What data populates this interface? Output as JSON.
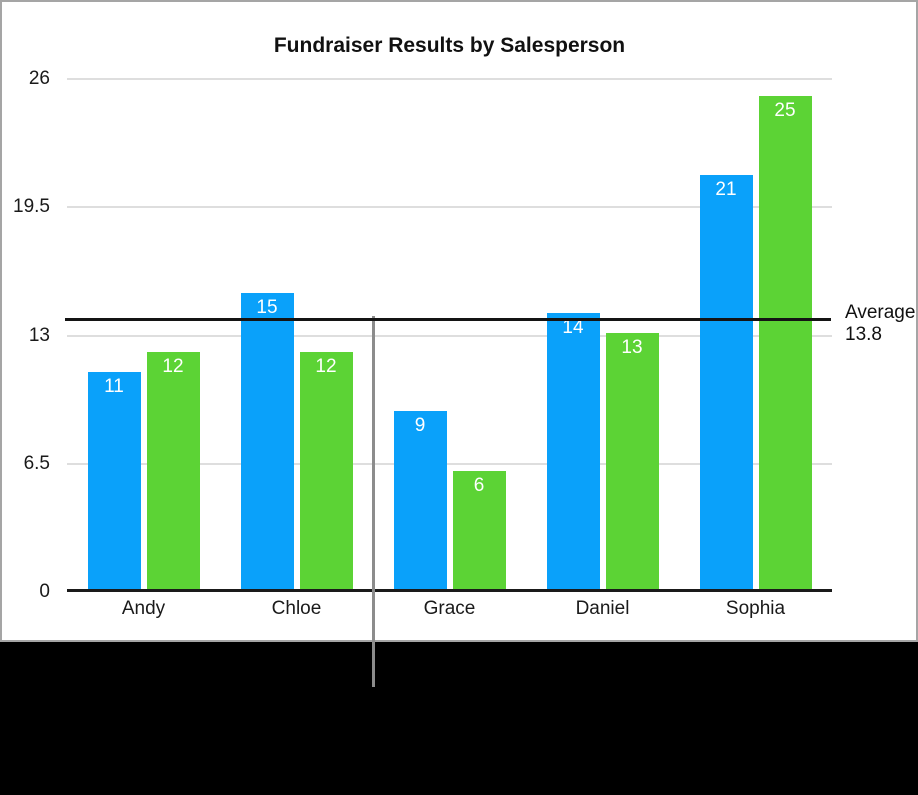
{
  "window": {
    "card_background": "#ffffff",
    "card_border_color": "#a5a5a5",
    "bottom_region_color": "#000000",
    "guideline_color": "#8c8c8c"
  },
  "chart_data": {
    "type": "bar",
    "title": "Fundraiser Results by Salesperson",
    "categories": [
      "Andy",
      "Chloe",
      "Grace",
      "Daniel",
      "Sophia"
    ],
    "series": [
      {
        "name": "series-blue",
        "color": "#0aa1fa",
        "values": [
          11,
          15,
          9,
          14,
          21
        ]
      },
      {
        "name": "series-green",
        "color": "#5cd335",
        "values": [
          12,
          12,
          6,
          13,
          25
        ]
      }
    ],
    "value_labels_shown": true,
    "value_label_color": "#ffffff",
    "xlabel": "",
    "ylabel": "",
    "ylim": [
      0,
      26
    ],
    "y_ticks": [
      26,
      19.5,
      13,
      6.5,
      0
    ],
    "y_tick_labels": [
      "26",
      "19.5",
      "13",
      "6.5",
      "0"
    ],
    "grid": true,
    "gridline_color": "#dedede",
    "legend": "none",
    "average_line": {
      "label": "Average",
      "value": 13.8,
      "value_label": "13.8",
      "color": "#141414"
    }
  }
}
